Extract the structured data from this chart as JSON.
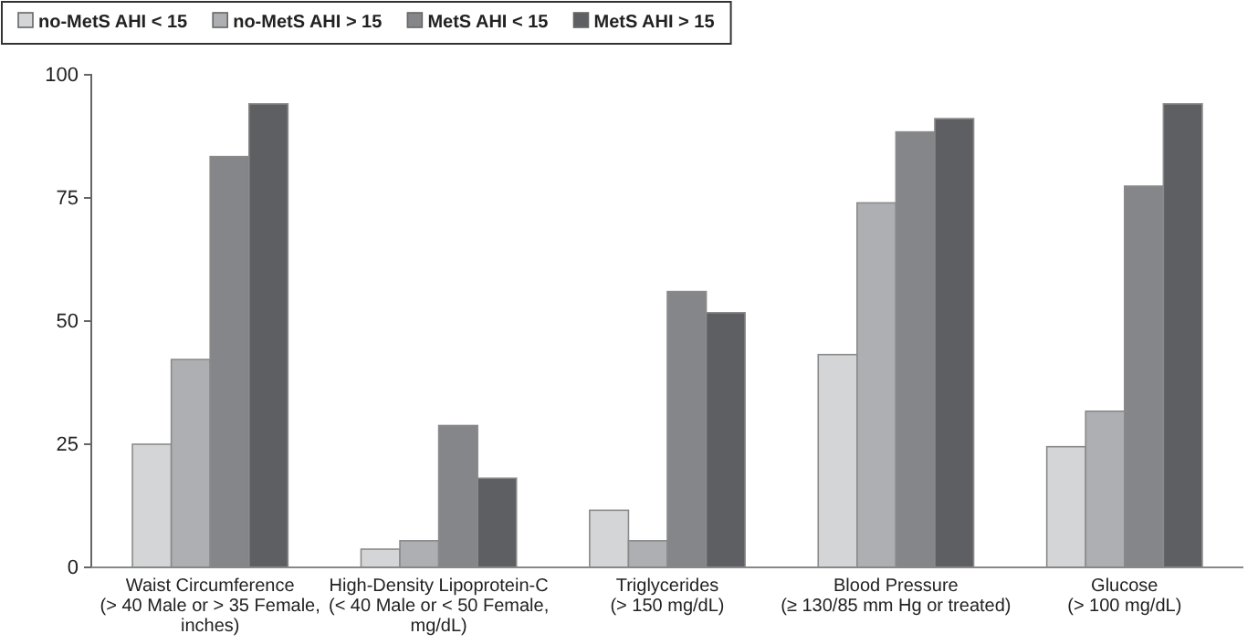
{
  "chart_data": {
    "type": "bar",
    "categories": [
      "Waist Circumference\n(> 40 Male or > 35 Female,\ninches)",
      "High-Density Lipoprotein-C\n(< 40 Male or < 50 Female,\nmg/dL)",
      "Triglycerides\n(> 150 mg/dL)",
      "Blood Pressure\n(≥ 130/85 mm Hg or treated)",
      "Glucose\n(> 100 mg/dL)"
    ],
    "series": [
      {
        "name": "no-MetS AHI < 15",
        "color": "#d4d5d7",
        "values": [
          25,
          3.7,
          11.6,
          43.2,
          24.5
        ]
      },
      {
        "name": "no-MetS AHI > 15",
        "color": "#aeafb2",
        "values": [
          42.2,
          5.4,
          5.4,
          74,
          31.7
        ]
      },
      {
        "name": "MetS AHI < 15",
        "color": "#85868a",
        "values": [
          83.4,
          28.8,
          56,
          88.4,
          77.4
        ]
      },
      {
        "name": "MetS AHI > 15",
        "color": "#5e5f62",
        "values": [
          94.1,
          18.1,
          51.7,
          91.1,
          94.1
        ]
      }
    ],
    "ylim": [
      0,
      100
    ],
    "yticks": [
      0,
      25,
      50,
      75,
      100
    ],
    "grid": false,
    "legend": "top left"
  }
}
